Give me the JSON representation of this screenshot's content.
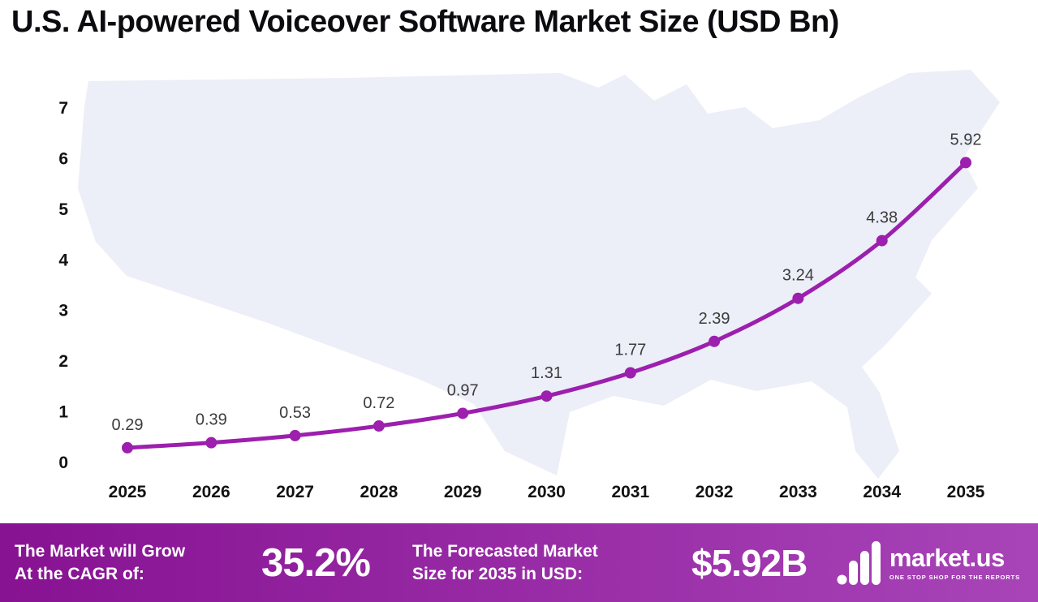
{
  "title": "U.S. AI-powered Voiceover Software Market Size (USD Bn)",
  "colors": {
    "line": "#9c1fad",
    "banner_from": "#871292",
    "banner_to": "#a844b8",
    "map": "#eceef8"
  },
  "chart_data": {
    "type": "line",
    "title": "U.S. AI-powered Voiceover Software Market Size (USD Bn)",
    "x": [
      "2025",
      "2026",
      "2027",
      "2028",
      "2029",
      "2030",
      "2031",
      "2032",
      "2033",
      "2034",
      "2035"
    ],
    "series": [
      {
        "name": "U.S. AI-powered Voiceover Software Market Size (USD Bn)",
        "values": [
          0.29,
          0.39,
          0.53,
          0.72,
          0.97,
          1.31,
          1.77,
          2.39,
          3.24,
          4.38,
          5.92
        ]
      }
    ],
    "data_labels": [
      "0.29",
      "0.39",
      "0.53",
      "0.72",
      "0.97",
      "1.31",
      "1.77",
      "2.39",
      "3.24",
      "4.38",
      "5.92"
    ],
    "xlabel": "",
    "ylabel": "",
    "ylim": [
      0,
      7
    ],
    "yticks": [
      0,
      1,
      2,
      3,
      4,
      5,
      6,
      7
    ],
    "grid": false,
    "legend": "none"
  },
  "banner": {
    "cagr_label_line1": "The Market will Grow",
    "cagr_label_line2": "At the CAGR of:",
    "cagr_value": "35.2%",
    "forecast_label_line1": "The Forecasted Market",
    "forecast_label_line2": "Size for 2035 in USD:",
    "forecast_value": "$5.92B",
    "brand_name": "market.us",
    "brand_tagline": "ONE STOP SHOP FOR THE REPORTS"
  }
}
